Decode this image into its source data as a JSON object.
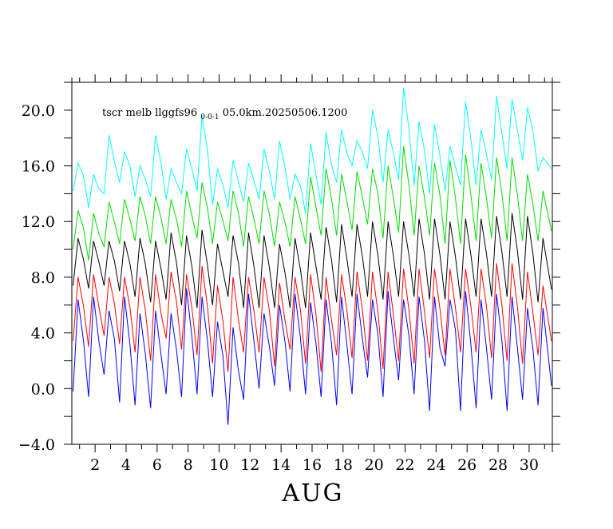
{
  "chart_data": {
    "type": "line",
    "title_parts": [
      "tscr melb llggfs96",
      "0-0-1",
      "05.0km.20250506.1200"
    ],
    "xlabel": "AUG",
    "ylabel": "",
    "xlim": [
      0.5,
      31.5
    ],
    "ylim": [
      -4.0,
      22.0
    ],
    "x_ticks": [
      2,
      4,
      6,
      8,
      10,
      12,
      14,
      16,
      18,
      20,
      22,
      24,
      26,
      28,
      30
    ],
    "x_tick_labels": [
      "2",
      "4",
      "6",
      "8",
      "10",
      "12",
      "14",
      "16",
      "18",
      "20",
      "22",
      "24",
      "26",
      "28",
      "30"
    ],
    "y_ticks": [
      -4.0,
      0.0,
      4.0,
      8.0,
      12.0,
      16.0,
      20.0
    ],
    "y_tick_labels": [
      "−4.0",
      "0.0",
      "4.0",
      "8.0",
      "12.0",
      "16.0",
      "20.0"
    ],
    "grid": false,
    "series": [
      {
        "color": "#00ffff",
        "daily_max": [
          16.2,
          15.4,
          18.2,
          17.0,
          16.0,
          18.2,
          15.8,
          17.2,
          19.6,
          15.8,
          16.4,
          16.2,
          17.2,
          17.8,
          15.4,
          17.6,
          18.4,
          18.6,
          17.8,
          20.0,
          18.6,
          21.6,
          19.2,
          19.0,
          17.4,
          20.6,
          18.6,
          21.0,
          20.8,
          20.2,
          16.6
        ],
        "daily_min": [
          14.2,
          13.0,
          14.0,
          14.8,
          13.8,
          13.8,
          13.6,
          14.0,
          14.2,
          13.2,
          13.0,
          13.4,
          13.6,
          13.6,
          13.6,
          12.6,
          13.2,
          14.8,
          16.0,
          15.8,
          14.8,
          15.0,
          14.6,
          14.0,
          14.2,
          14.6,
          14.6,
          15.0,
          15.8,
          16.4,
          15.6
        ]
      },
      {
        "color": "#00dd00",
        "daily_max": [
          12.8,
          12.6,
          13.4,
          13.6,
          13.8,
          13.8,
          13.6,
          14.2,
          14.8,
          13.4,
          14.2,
          13.8,
          14.2,
          13.4,
          13.8,
          15.2,
          15.8,
          15.4,
          15.6,
          15.8,
          16.0,
          17.4,
          16.0,
          16.2,
          16.4,
          16.8,
          16.2,
          16.6,
          16.6,
          15.4,
          14.2
        ],
        "daily_min": [
          10.0,
          9.2,
          10.2,
          10.4,
          10.6,
          10.4,
          10.4,
          10.2,
          10.8,
          10.4,
          10.6,
          10.2,
          10.4,
          10.2,
          10.2,
          10.4,
          11.0,
          11.0,
          11.4,
          11.8,
          10.8,
          11.2,
          11.0,
          11.0,
          10.4,
          10.4,
          10.6,
          10.8,
          10.6,
          10.6,
          10.6
        ]
      },
      {
        "color": "#000000",
        "daily_max": [
          10.8,
          10.6,
          10.6,
          10.6,
          10.8,
          10.6,
          11.2,
          11.0,
          11.4,
          10.4,
          11.0,
          11.2,
          11.0,
          10.4,
          10.8,
          11.2,
          11.6,
          11.8,
          11.8,
          12.0,
          12.0,
          12.0,
          12.2,
          12.2,
          12.0,
          12.2,
          12.2,
          12.4,
          12.6,
          12.4,
          10.8
        ],
        "daily_min": [
          7.4,
          7.2,
          7.4,
          7.0,
          6.6,
          6.2,
          6.4,
          6.0,
          5.8,
          6.0,
          6.6,
          5.8,
          5.8,
          5.8,
          5.8,
          5.8,
          6.4,
          6.2,
          6.6,
          6.6,
          6.4,
          6.6,
          6.6,
          6.4,
          6.4,
          6.4,
          6.6,
          6.6,
          6.6,
          6.4,
          6.2
        ]
      },
      {
        "color": "#ff0000",
        "daily_max": [
          8.0,
          8.2,
          8.0,
          8.0,
          8.0,
          8.2,
          8.4,
          8.2,
          8.8,
          7.4,
          8.0,
          8.0,
          8.0,
          7.6,
          8.0,
          8.2,
          8.0,
          8.2,
          8.4,
          8.4,
          8.4,
          8.6,
          8.6,
          8.6,
          8.6,
          8.6,
          8.6,
          9.0,
          9.0,
          8.4,
          7.4
        ],
        "daily_min": [
          3.4,
          3.0,
          3.8,
          3.2,
          2.6,
          2.0,
          3.6,
          2.8,
          2.4,
          1.8,
          1.2,
          2.6,
          2.6,
          1.6,
          2.8,
          1.8,
          1.2,
          2.4,
          2.2,
          2.0,
          1.4,
          2.0,
          1.8,
          2.2,
          2.4,
          2.6,
          2.6,
          2.2,
          2.0,
          1.8,
          2.4
        ]
      },
      {
        "color": "#0000ff",
        "daily_max": [
          6.4,
          6.6,
          5.6,
          6.6,
          5.4,
          5.6,
          5.4,
          7.2,
          6.6,
          4.8,
          4.4,
          6.8,
          5.4,
          6.0,
          6.8,
          6.2,
          6.4,
          6.6,
          6.8,
          6.4,
          7.0,
          6.4,
          6.6,
          6.6,
          6.4,
          7.0,
          6.4,
          6.8,
          6.6,
          5.8,
          5.8
        ],
        "daily_min": [
          -0.2,
          -0.6,
          1.0,
          -1.0,
          -1.2,
          -1.4,
          -0.4,
          -0.6,
          -0.4,
          -0.6,
          -2.6,
          -0.8,
          0.0,
          0.2,
          -0.2,
          -0.4,
          -0.6,
          -1.2,
          -0.4,
          0.8,
          -0.6,
          0.6,
          -0.4,
          -1.6,
          1.6,
          -1.6,
          -1.4,
          -0.8,
          -1.6,
          -0.8,
          -1.2
        ]
      }
    ]
  }
}
